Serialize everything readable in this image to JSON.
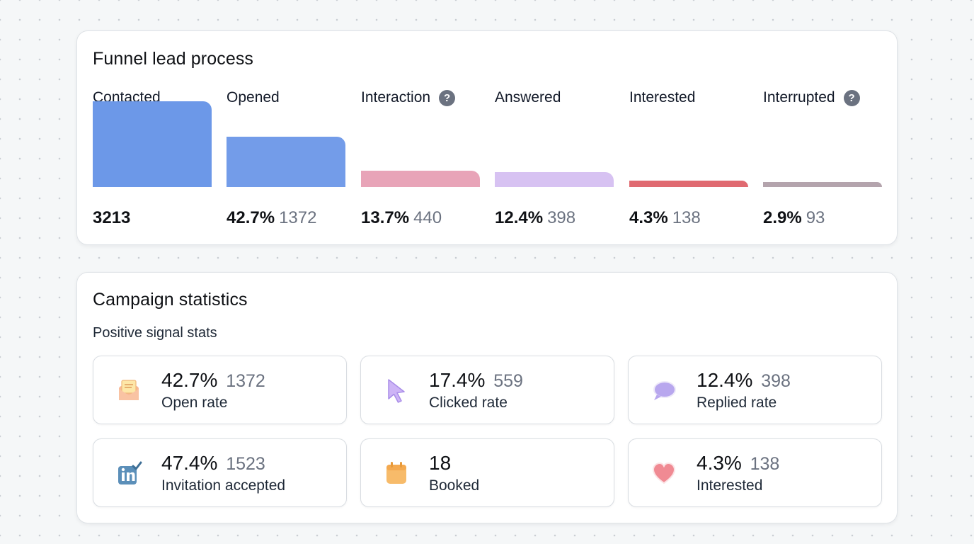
{
  "funnel": {
    "title": "Funnel lead process",
    "stages": [
      {
        "label": "Contacted",
        "has_help": false,
        "pct": "",
        "count": "3213",
        "relative_size": 1.0,
        "color": "#6c98e8"
      },
      {
        "label": "Opened",
        "has_help": false,
        "pct": "42.7%",
        "count": "1372",
        "relative_size": 0.584,
        "color": "#739ce9"
      },
      {
        "label": "Interaction",
        "has_help": true,
        "pct": "13.7%",
        "count": "440",
        "relative_size": 0.19,
        "color": "#e8a4b8"
      },
      {
        "label": "Answered",
        "has_help": false,
        "pct": "12.4%",
        "count": "398",
        "relative_size": 0.17,
        "color": "#d7c2f2"
      },
      {
        "label": "Interested",
        "has_help": false,
        "pct": "4.3%",
        "count": "138",
        "relative_size": 0.072,
        "color": "#e06a71"
      },
      {
        "label": "Interrupted",
        "has_help": true,
        "pct": "2.9%",
        "count": "93",
        "relative_size": 0.05,
        "color": "#b4a4ad"
      }
    ]
  },
  "campaign": {
    "title": "Campaign statistics",
    "subtitle": "Positive signal stats",
    "stats": [
      {
        "icon": "envelope-icon",
        "pct": "42.7%",
        "count": "1372",
        "label": "Open rate"
      },
      {
        "icon": "cursor-icon",
        "pct": "17.4%",
        "count": "559",
        "label": "Clicked rate"
      },
      {
        "icon": "chat-bubble-icon",
        "pct": "12.4%",
        "count": "398",
        "label": "Replied rate"
      },
      {
        "icon": "linkedin-check-icon",
        "pct": "47.4%",
        "count": "1523",
        "label": "Invitation accepted"
      },
      {
        "icon": "calendar-icon",
        "pct": "18",
        "count": "",
        "label": "Booked"
      },
      {
        "icon": "heart-icon",
        "pct": "4.3%",
        "count": "138",
        "label": "Interested"
      }
    ]
  },
  "help_glyph": "?"
}
